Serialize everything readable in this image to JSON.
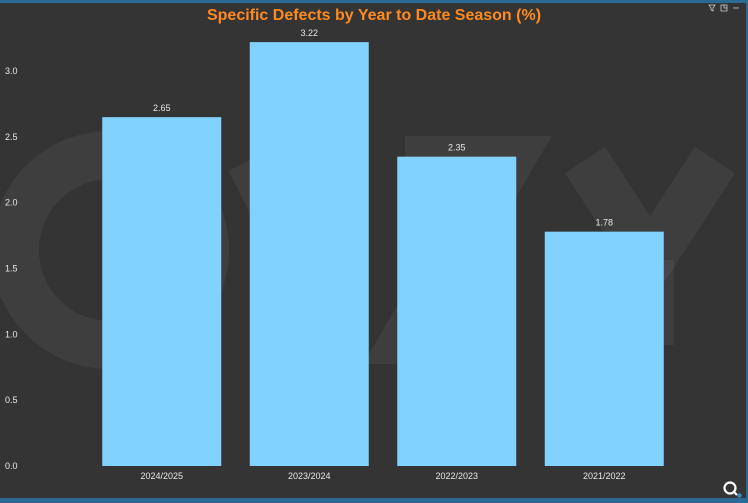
{
  "window": {
    "toolbar_icons": [
      "filter-icon",
      "expand-icon",
      "more-icon"
    ]
  },
  "colors": {
    "background": "#343434",
    "title": "#ff8a1f",
    "bar": "#82d2ff",
    "axis_text": "#e8e8e8"
  },
  "chart_data": {
    "type": "bar",
    "title": "Specific Defects by Year to Date Season (%)",
    "categories": [
      "2024/2025",
      "2023/2024",
      "2022/2023",
      "2021/2022"
    ],
    "values": [
      2.65,
      3.22,
      2.35,
      1.78
    ],
    "data_labels": [
      "2.65",
      "3.22",
      "2.35",
      "1.78"
    ],
    "yticks": [
      "0.0",
      "0.5",
      "1.0",
      "1.5",
      "2.0",
      "2.5",
      "3.0"
    ],
    "ylim": [
      0,
      3.35
    ],
    "grid": false,
    "legend": "none"
  }
}
